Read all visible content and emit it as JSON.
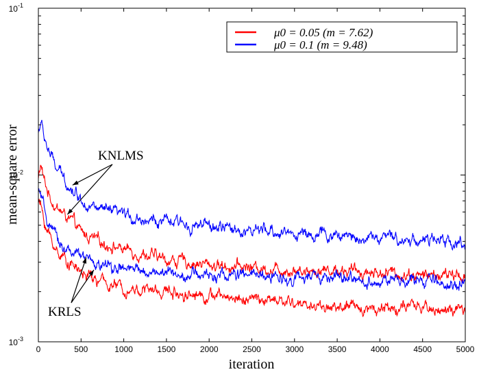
{
  "chart_data": {
    "type": "line",
    "xlabel": "iteration",
    "ylabel": "mean-square error",
    "xlim": [
      0,
      5000
    ],
    "ylim": [
      0.001,
      0.1
    ],
    "yscale": "log",
    "x_ticks": [
      0,
      500,
      1000,
      1500,
      2000,
      2500,
      3000,
      3500,
      4000,
      4500,
      5000
    ],
    "x_tick_labels": [
      "0",
      "500",
      "1000",
      "1500",
      "2000",
      "2500",
      "3000",
      "3500",
      "4000",
      "4500",
      "5000"
    ],
    "y_ticks": [
      0.001,
      0.01,
      0.1
    ],
    "y_tick_bases": [
      "10",
      "10",
      "10"
    ],
    "y_tick_exps": [
      "-3",
      "-2",
      "-1"
    ],
    "legend": {
      "placement": "top-right",
      "entries": [
        {
          "label": "μ0 = 0.05 (m = 7.62)",
          "color": "#ff0000"
        },
        {
          "label": "μ0 = 0.1 (m = 9.48)",
          "color": "#0000ff"
        }
      ]
    },
    "annotations": [
      {
        "text": "KNLMS",
        "targets": [
          [
            400,
            0.0087
          ],
          [
            340,
            0.0058
          ]
        ]
      },
      {
        "text": "KRLS",
        "targets": [
          [
            560,
            0.0032
          ],
          [
            650,
            0.0027
          ]
        ]
      }
    ],
    "series": [
      {
        "name": "KNLMS μ0 = 0.05",
        "color": "#ff0000",
        "x": [
          0,
          30,
          60,
          100,
          150,
          200,
          300,
          400,
          500,
          700,
          1000,
          1500,
          2000,
          2500,
          3000,
          3500,
          4000,
          4500,
          5000
        ],
        "y": [
          0.0095,
          0.0115,
          0.0095,
          0.0082,
          0.0072,
          0.0065,
          0.0058,
          0.0052,
          0.0045,
          0.004,
          0.0036,
          0.0031,
          0.0029,
          0.0028,
          0.0027,
          0.0027,
          0.0026,
          0.0025,
          0.0025
        ]
      },
      {
        "name": "KRLS μ0 = 0.05",
        "color": "#ff0000",
        "x": [
          0,
          30,
          60,
          100,
          150,
          200,
          300,
          400,
          500,
          700,
          1000,
          1500,
          2000,
          2500,
          3000,
          3500,
          4000,
          4500,
          5000
        ],
        "y": [
          0.007,
          0.0065,
          0.0055,
          0.0047,
          0.0041,
          0.0036,
          0.0032,
          0.0029,
          0.0026,
          0.0023,
          0.0021,
          0.002,
          0.0019,
          0.0018,
          0.0017,
          0.0016,
          0.0016,
          0.0016,
          0.0015
        ]
      },
      {
        "name": "KNLMS μ0 = 0.1",
        "color": "#0000ff",
        "x": [
          0,
          30,
          60,
          100,
          150,
          200,
          300,
          400,
          500,
          700,
          1000,
          1500,
          2000,
          2500,
          3000,
          3500,
          4000,
          4500,
          5000
        ],
        "y": [
          0.018,
          0.021,
          0.0175,
          0.015,
          0.0128,
          0.0112,
          0.0095,
          0.0082,
          0.0072,
          0.0062,
          0.0057,
          0.0052,
          0.0049,
          0.0046,
          0.0045,
          0.0043,
          0.0042,
          0.0041,
          0.0039
        ]
      },
      {
        "name": "KRLS μ0 = 0.1",
        "color": "#0000ff",
        "x": [
          0,
          30,
          60,
          100,
          150,
          200,
          300,
          400,
          500,
          700,
          1000,
          1500,
          2000,
          2500,
          3000,
          3500,
          4000,
          4500,
          5000
        ],
        "y": [
          0.008,
          0.0075,
          0.0063,
          0.0054,
          0.0047,
          0.0042,
          0.0037,
          0.0034,
          0.0032,
          0.0029,
          0.0027,
          0.0026,
          0.0025,
          0.0025,
          0.0024,
          0.0024,
          0.0023,
          0.0023,
          0.0022
        ]
      }
    ]
  }
}
